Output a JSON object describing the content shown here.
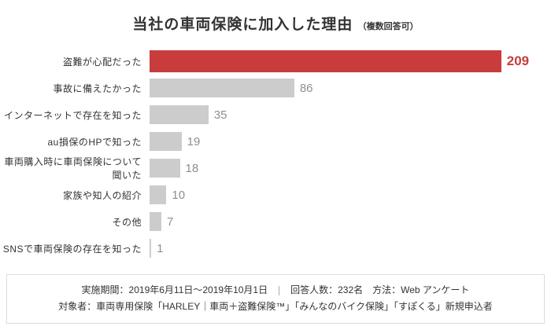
{
  "title": {
    "main": "当社の車両保険に加入した理由",
    "note": "（複数回答可）"
  },
  "chart_data": {
    "type": "bar",
    "orientation": "horizontal",
    "title": "当社の車両保険に加入した理由（複数回答可）",
    "categories": [
      "盗難が心配だった",
      "事故に備えたかった",
      "インターネットで存在を知った",
      "au損保のHPで知った",
      "車両購入時に車両保険について聞いた",
      "家族や知人の紹介",
      "その他",
      "SNSで車両保険の存在を知った"
    ],
    "values": [
      209,
      86,
      35,
      19,
      18,
      10,
      7,
      1
    ],
    "max_value": 209,
    "highlight_index": 0,
    "colors": {
      "highlight_bar": "#c83c3c",
      "default_bar": "#cccccc",
      "highlight_value_text": "#c83c3c",
      "default_value_text": "#8e8e8e"
    },
    "legend": "none",
    "grid": false
  },
  "footer": {
    "period": "実施期間：2019年6月11日〜2019年10月1日",
    "respondents_method": "回答人数：232名　方法：Web アンケート",
    "target": "対象者：車両専用保険「HARLEY｜車両＋盗難保険™」「みんなのバイク保険」「すぽくる」新規申込者"
  }
}
